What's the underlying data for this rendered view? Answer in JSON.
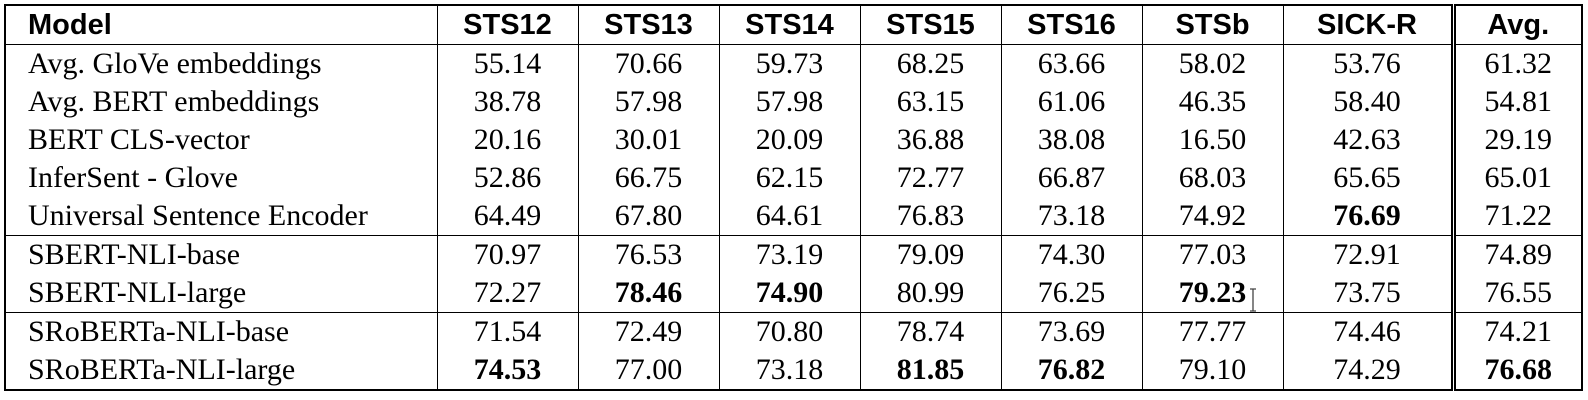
{
  "table": {
    "headers": [
      "Model",
      "STS12",
      "STS13",
      "STS14",
      "STS15",
      "STS16",
      "STSb",
      "SICK-R",
      "Avg."
    ],
    "groups": [
      [
        {
          "model": "Avg. GloVe embeddings",
          "values": [
            "55.14",
            "70.66",
            "59.73",
            "68.25",
            "63.66",
            "58.02",
            "53.76",
            "61.32"
          ],
          "bold": [
            false,
            false,
            false,
            false,
            false,
            false,
            false,
            false
          ]
        },
        {
          "model": "Avg. BERT embeddings",
          "values": [
            "38.78",
            "57.98",
            "57.98",
            "63.15",
            "61.06",
            "46.35",
            "58.40",
            "54.81"
          ],
          "bold": [
            false,
            false,
            false,
            false,
            false,
            false,
            false,
            false
          ]
        },
        {
          "model": "BERT CLS-vector",
          "values": [
            "20.16",
            "30.01",
            "20.09",
            "36.88",
            "38.08",
            "16.50",
            "42.63",
            "29.19"
          ],
          "bold": [
            false,
            false,
            false,
            false,
            false,
            false,
            false,
            false
          ]
        },
        {
          "model": "InferSent - Glove",
          "values": [
            "52.86",
            "66.75",
            "62.15",
            "72.77",
            "66.87",
            "68.03",
            "65.65",
            "65.01"
          ],
          "bold": [
            false,
            false,
            false,
            false,
            false,
            false,
            false,
            false
          ]
        },
        {
          "model": "Universal Sentence Encoder",
          "values": [
            "64.49",
            "67.80",
            "64.61",
            "76.83",
            "73.18",
            "74.92",
            "76.69",
            "71.22"
          ],
          "bold": [
            false,
            false,
            false,
            false,
            false,
            false,
            true,
            false
          ]
        }
      ],
      [
        {
          "model": "SBERT-NLI-base",
          "values": [
            "70.97",
            "76.53",
            "73.19",
            "79.09",
            "74.30",
            "77.03",
            "72.91",
            "74.89"
          ],
          "bold": [
            false,
            false,
            false,
            false,
            false,
            false,
            false,
            false
          ]
        },
        {
          "model": "SBERT-NLI-large",
          "values": [
            "72.27",
            "78.46",
            "74.90",
            "80.99",
            "76.25",
            "79.23",
            "73.75",
            "76.55"
          ],
          "bold": [
            false,
            true,
            true,
            false,
            false,
            true,
            false,
            false
          ]
        }
      ],
      [
        {
          "model": "SRoBERTa-NLI-base",
          "values": [
            "71.54",
            "72.49",
            "70.80",
            "78.74",
            "73.69",
            "77.77",
            "74.46",
            "74.21"
          ],
          "bold": [
            false,
            false,
            false,
            false,
            false,
            false,
            false,
            false
          ]
        },
        {
          "model": "SRoBERTa-NLI-large",
          "values": [
            "74.53",
            "77.00",
            "73.18",
            "81.85",
            "76.82",
            "79.10",
            "74.29",
            "76.68"
          ],
          "bold": [
            true,
            false,
            false,
            true,
            true,
            false,
            false,
            true
          ]
        }
      ]
    ]
  },
  "cursor": {
    "icon": "i-beam-cursor-icon"
  }
}
